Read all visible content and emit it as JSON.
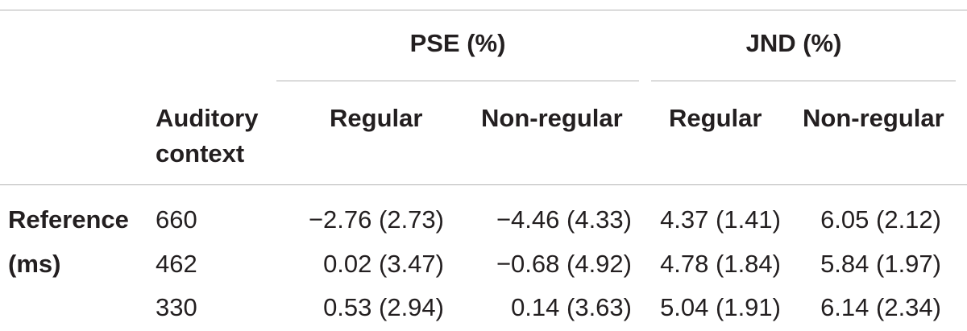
{
  "table": {
    "group_headers": {
      "pse": "PSE (%)",
      "jnd": "JND (%)"
    },
    "column_headers": {
      "context_line1": "Auditory",
      "context_line2": "context",
      "pse_regular": "Regular",
      "pse_non_regular": "Non-regular",
      "jnd_regular": "Regular",
      "jnd_non_regular": "Non-regular"
    },
    "row_group_label": {
      "line1": "Reference",
      "line2": "(ms)"
    },
    "rows": [
      {
        "context": "660",
        "pse_regular": "−2.76 (2.73)",
        "pse_non_regular": "−4.46 (4.33)",
        "jnd_regular": "4.37 (1.41)",
        "jnd_non_regular": "6.05 (2.12)"
      },
      {
        "context": "462",
        "pse_regular": "0.02 (3.47)",
        "pse_non_regular": "−0.68 (4.92)",
        "jnd_regular": "4.78 (1.84)",
        "jnd_non_regular": "5.84 (1.97)"
      },
      {
        "context": "330",
        "pse_regular": "0.53 (2.94)",
        "pse_non_regular": "0.14 (3.63)",
        "jnd_regular": "5.04 (1.91)",
        "jnd_non_regular": "6.14 (2.34)"
      }
    ]
  }
}
